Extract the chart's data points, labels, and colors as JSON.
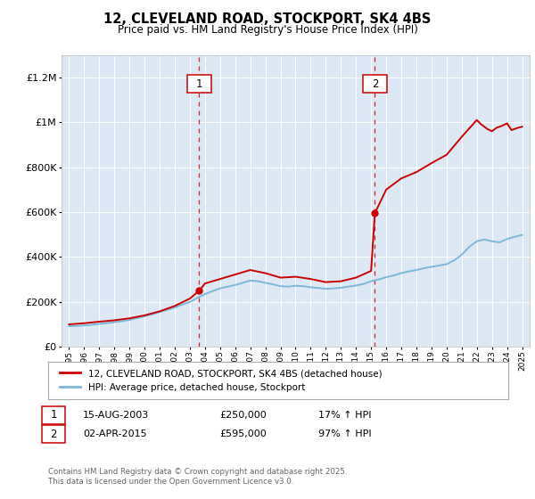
{
  "title": "12, CLEVELAND ROAD, STOCKPORT, SK4 4BS",
  "subtitle": "Price paid vs. HM Land Registry's House Price Index (HPI)",
  "title_fontsize": 10.5,
  "subtitle_fontsize": 8.5,
  "bg_color": "#ffffff",
  "plot_bg_color": "#dce9f5",
  "grid_color": "#ffffff",
  "red_color": "#cc0000",
  "blue_color": "#7ab8d9",
  "sale1_year": 2003.622,
  "sale1_price": 250000,
  "sale2_year": 2015.25,
  "sale2_price": 595000,
  "sale1_date": "15-AUG-2003",
  "sale1_price_str": "£250,000",
  "sale1_hpi_pct": "17% ↑ HPI",
  "sale2_date": "02-APR-2015",
  "sale2_price_str": "£595,000",
  "sale2_hpi_pct": "97% ↑ HPI",
  "ylim": [
    0,
    1300000
  ],
  "xlim": [
    1994.5,
    2025.5
  ],
  "yticks": [
    0,
    200000,
    400000,
    600000,
    800000,
    1000000,
    1200000
  ],
  "ytick_labels": [
    "£0",
    "£200K",
    "£400K",
    "£600K",
    "£800K",
    "£1M",
    "£1.2M"
  ],
  "legend_label_red": "12, CLEVELAND ROAD, STOCKPORT, SK4 4BS (detached house)",
  "legend_label_blue": "HPI: Average price, detached house, Stockport",
  "footer_text": "Contains HM Land Registry data © Crown copyright and database right 2025.\nThis data is licensed under the Open Government Licence v3.0.",
  "hpi_years": [
    1995,
    1995.5,
    1996,
    1996.5,
    1997,
    1997.5,
    1998,
    1998.5,
    1999,
    1999.5,
    2000,
    2000.5,
    2001,
    2001.5,
    2002,
    2002.5,
    2003,
    2003.5,
    2004,
    2004.5,
    2005,
    2005.5,
    2006,
    2006.5,
    2007,
    2007.5,
    2008,
    2008.5,
    2009,
    2009.5,
    2010,
    2010.5,
    2011,
    2011.5,
    2012,
    2012.5,
    2013,
    2013.5,
    2014,
    2014.5,
    2015,
    2015.5,
    2016,
    2016.5,
    2017,
    2017.5,
    2018,
    2018.5,
    2019,
    2019.5,
    2020,
    2020.5,
    2021,
    2021.5,
    2022,
    2022.5,
    2023,
    2023.5,
    2024,
    2024.5,
    2025
  ],
  "hpi_values": [
    92000,
    93000,
    95000,
    98000,
    102000,
    105000,
    110000,
    114000,
    120000,
    128000,
    136000,
    145000,
    155000,
    165000,
    175000,
    188000,
    200000,
    218000,
    235000,
    248000,
    260000,
    268000,
    275000,
    285000,
    295000,
    292000,
    285000,
    278000,
    270000,
    268000,
    272000,
    270000,
    265000,
    262000,
    258000,
    260000,
    263000,
    268000,
    273000,
    280000,
    292000,
    300000,
    310000,
    318000,
    328000,
    336000,
    342000,
    350000,
    356000,
    362000,
    368000,
    385000,
    410000,
    445000,
    470000,
    478000,
    470000,
    465000,
    480000,
    490000,
    498000
  ],
  "property_years": [
    1995,
    1996,
    1997,
    1998,
    1999,
    2000,
    2001,
    2002,
    2003.0,
    2003.622,
    2004,
    2005,
    2006,
    2007,
    2008,
    2009,
    2010,
    2011,
    2012,
    2013,
    2014,
    2015.0,
    2015.25,
    2016,
    2017,
    2018,
    2019,
    2020,
    2021,
    2022,
    2022.3,
    2022.7,
    2023,
    2023.3,
    2023.7,
    2024,
    2024.3,
    2024.7,
    2025
  ],
  "property_values": [
    100000,
    105000,
    112000,
    118000,
    127000,
    140000,
    158000,
    182000,
    215000,
    250000,
    282000,
    302000,
    322000,
    342000,
    328000,
    308000,
    312000,
    302000,
    288000,
    292000,
    308000,
    338000,
    595000,
    700000,
    750000,
    778000,
    818000,
    855000,
    935000,
    1010000,
    990000,
    970000,
    960000,
    975000,
    985000,
    995000,
    965000,
    975000,
    980000
  ]
}
